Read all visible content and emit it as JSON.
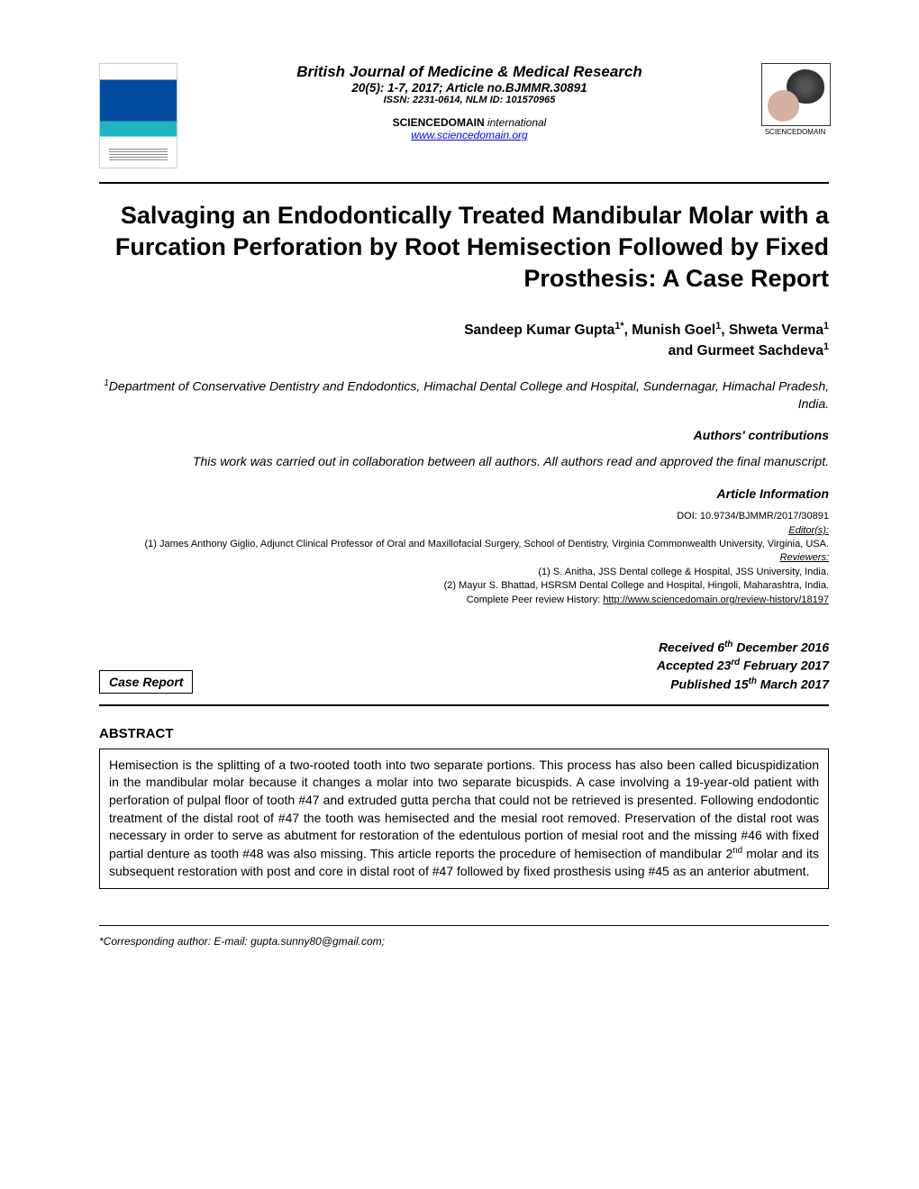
{
  "journal": {
    "name": "British Journal of Medicine & Medical Research",
    "issue": "20(5): 1-7, 2017; Article no.BJMMR.30891",
    "issn": "ISSN: 2231-0614, NLM ID: 101570965",
    "publisher_line1": "SCIENCEDOMAIN ",
    "publisher_line2": "international",
    "url": "www.sciencedomain.org",
    "logo_caption": "SCIENCEDOMAIN"
  },
  "title": "Salvaging an Endodontically Treated Mandibular Molar with a Furcation Perforation by Root Hemisection Followed by Fixed Prosthesis: A Case Report",
  "authors_line1_a": "Sandeep Kumar Gupta",
  "authors_line1_b": ", Munish Goel",
  "authors_line1_c": ", Shweta Verma",
  "authors_line2": "and Gurmeet Sachdeva",
  "sup1star": "1*",
  "sup1": "1",
  "affiliation_sup": "1",
  "affiliation": "Department of Conservative Dentistry and Endodontics, Himachal Dental College and Hospital, Sundernagar, Himachal Pradesh, India.",
  "contrib_head": "Authors' contributions",
  "contrib_text": "This work was carried out in collaboration between all authors. All authors read and approved the final manuscript.",
  "artinfo_head": "Article Information",
  "doi": "DOI: 10.9734/BJMMR/2017/30891",
  "editors_label": "Editor(s):",
  "editor1": "(1) James Anthony Giglio, Adjunct Clinical Professor of Oral and Maxillofacial Surgery, School of Dentistry, Virginia Commonwealth University, Virginia, USA.",
  "reviewers_label": "Reviewers:",
  "reviewer1": "(1) S. Anitha, JSS Dental college & Hospital, JSS University, India.",
  "reviewer2": "(2) Mayur S. Bhattad, HSRSM Dental College and Hospital, Hingoli, Maharashtra, India.",
  "peer_review_prefix": "Complete Peer review History: ",
  "peer_review_url": "http://www.sciencedomain.org/review-history/18197",
  "type": "Case Report",
  "received_prefix": "Received 6",
  "received_sup": "th",
  "received_suffix": " December 2016",
  "accepted_prefix": "Accepted 23",
  "accepted_sup": "rd",
  "accepted_suffix": " February 2017",
  "published_prefix": "Published 15",
  "published_sup": "th",
  "published_suffix": " March 2017",
  "abstract_head": "ABSTRACT",
  "abstract_p1": "Hemisection is the splitting of a two-rooted tooth into two separate portions. This process has also been called bicuspidization in the mandibular molar because it changes a molar into two separate bicuspids. A case involving a 19-year-old patient with perforation of pulpal floor of tooth #47 and extruded gutta percha that could not be retrieved is presented.  Following endodontic treatment of the distal root of #47 the tooth was hemisected and the mesial root removed. Preservation of the distal root was necessary in order to serve as abutment for restoration of the edentulous portion of mesial root and the missing #46 with fixed partial denture as tooth #48 was also missing. This article reports the procedure of hemisection of mandibular 2",
  "abstract_sup": "nd",
  "abstract_p2": " molar and its subsequent restoration with post and core in distal root of #47 followed by fixed prosthesis using #45 as an anterior abutment.",
  "corresponding": "*Corresponding author: E-mail: gupta.sunny80@gmail.com;"
}
